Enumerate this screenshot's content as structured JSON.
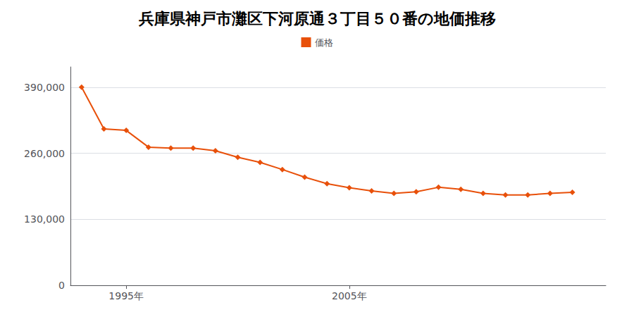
{
  "chart_data": {
    "type": "line",
    "title": "兵庫県神戸市灘区下河原通３丁目５０番の地価推移",
    "x": [
      1993,
      1994,
      1995,
      1996,
      1997,
      1998,
      1999,
      2000,
      2001,
      2002,
      2003,
      2004,
      2005,
      2006,
      2007,
      2008,
      2009,
      2010,
      2011,
      2012,
      2013,
      2014,
      2015
    ],
    "series": [
      {
        "name": "価格",
        "color": "#e8500a",
        "marker": "diamond",
        "values": [
          390000,
          308000,
          305000,
          272000,
          270000,
          270000,
          265000,
          252000,
          242000,
          228000,
          213000,
          200000,
          192000,
          186000,
          181000,
          184000,
          193000,
          189000,
          181000,
          178000,
          178000,
          181000,
          183000
        ]
      }
    ],
    "xlim": [
      1992.5,
      2016.5
    ],
    "xticks": [
      {
        "value": 1995,
        "label": "1995年"
      },
      {
        "value": 2005,
        "label": "2005年"
      }
    ],
    "ylim": [
      0,
      430000
    ],
    "yticks": [
      0,
      {
        "value": 130000,
        "label": "130,000"
      },
      {
        "value": 260000,
        "label": "260,000"
      },
      {
        "value": 390000,
        "label": "390,000"
      }
    ],
    "grid": "y",
    "legend": "top"
  }
}
